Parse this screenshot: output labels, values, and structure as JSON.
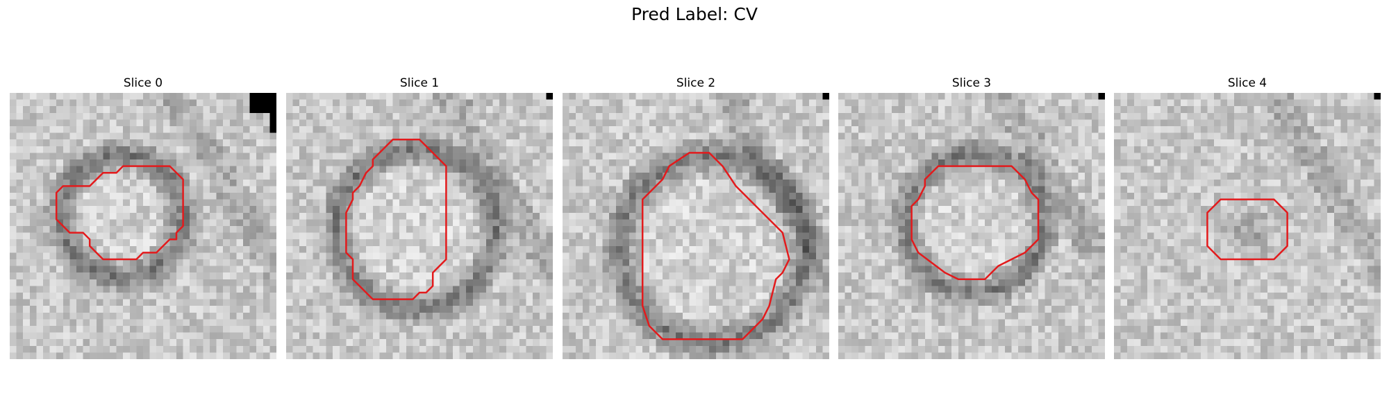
{
  "figure": {
    "title": "Pred Label: CV"
  },
  "contour_color": "#e31a1c",
  "slices": [
    {
      "title": "Slice 0",
      "contour": [
        [
          6,
          7
        ],
        [
          7,
          6
        ],
        [
          8,
          6
        ],
        [
          8.5,
          5.5
        ],
        [
          12,
          5.5
        ],
        [
          13,
          6.5
        ],
        [
          13,
          10
        ],
        [
          12.5,
          10.5
        ],
        [
          12.5,
          11
        ],
        [
          12,
          11
        ],
        [
          11,
          12
        ],
        [
          10,
          12
        ],
        [
          9.5,
          12.5
        ],
        [
          7,
          12.5
        ],
        [
          6,
          11.5
        ],
        [
          6,
          11
        ],
        [
          5.5,
          10.5
        ],
        [
          4.5,
          10.5
        ],
        [
          3.5,
          9.5
        ],
        [
          3.5,
          7.5
        ],
        [
          4,
          7
        ]
      ],
      "blob": {
        "cx": 8.2,
        "cy": 9,
        "r": 4.6,
        "ring": 1.5
      }
    },
    {
      "title": "Slice 1",
      "contour": [
        [
          6.5,
          5
        ],
        [
          8,
          3.5
        ],
        [
          10,
          3.5
        ],
        [
          11,
          4.5
        ],
        [
          11.5,
          5
        ],
        [
          12,
          5.5
        ],
        [
          12,
          12.5
        ],
        [
          11.5,
          13
        ],
        [
          11,
          13.5
        ],
        [
          11,
          14.5
        ],
        [
          10.5,
          15
        ],
        [
          10,
          15
        ],
        [
          9.5,
          15.5
        ],
        [
          6.5,
          15.5
        ],
        [
          5.5,
          14.5
        ],
        [
          5,
          14
        ],
        [
          5,
          12.5
        ],
        [
          4.5,
          12
        ],
        [
          4.5,
          10
        ],
        [
          4.5,
          9
        ],
        [
          5,
          8
        ],
        [
          5,
          7.5
        ],
        [
          5.5,
          7
        ],
        [
          6,
          6
        ],
        [
          6.5,
          5.5
        ]
      ],
      "blob": {
        "cx": 9.5,
        "cy": 10,
        "r": 6,
        "ring": 1.5
      }
    },
    {
      "title": "Slice 2",
      "contour": [
        [
          8,
          5.5
        ],
        [
          9.5,
          4.5
        ],
        [
          11,
          4.5
        ],
        [
          12,
          5.5
        ],
        [
          13,
          7
        ],
        [
          14.5,
          8.5
        ],
        [
          16.5,
          10.5
        ],
        [
          17,
          12.5
        ],
        [
          16.5,
          13.5
        ],
        [
          16,
          14
        ],
        [
          15.5,
          16
        ],
        [
          15,
          17
        ],
        [
          14.5,
          17.5
        ],
        [
          14,
          18
        ],
        [
          13.5,
          18.5
        ],
        [
          7.5,
          18.5
        ],
        [
          6.5,
          17.5
        ],
        [
          6,
          16
        ],
        [
          6,
          13
        ],
        [
          6,
          10
        ],
        [
          6,
          8
        ],
        [
          7,
          7
        ],
        [
          7.5,
          6.5
        ]
      ],
      "blob": {
        "cx": 11,
        "cy": 11.5,
        "r": 7,
        "ring": 1.6
      }
    },
    {
      "title": "Slice 3",
      "contour": [
        [
          6.5,
          6.5
        ],
        [
          7.5,
          5.5
        ],
        [
          13,
          5.5
        ],
        [
          14,
          6.5
        ],
        [
          14.5,
          7.5
        ],
        [
          15,
          8
        ],
        [
          15,
          11
        ],
        [
          14,
          12
        ],
        [
          13,
          12.5
        ],
        [
          12,
          13
        ],
        [
          11,
          14
        ],
        [
          9,
          14
        ],
        [
          8,
          13.5
        ],
        [
          6,
          12
        ],
        [
          5.5,
          11
        ],
        [
          5.5,
          8.5
        ],
        [
          6,
          8
        ],
        [
          6.5,
          7
        ]
      ],
      "blob": {
        "cx": 10,
        "cy": 9.5,
        "r": 5.2,
        "ring": 1.4
      }
    },
    {
      "title": "Slice 4",
      "contour": [
        [
          7.5,
          8.5
        ],
        [
          8,
          8
        ],
        [
          12,
          8
        ],
        [
          12.5,
          8.5
        ],
        [
          13,
          9
        ],
        [
          13,
          11.5
        ],
        [
          12.5,
          12
        ],
        [
          12,
          12.5
        ],
        [
          8,
          12.5
        ],
        [
          7.5,
          12
        ],
        [
          7,
          11.5
        ],
        [
          7,
          9
        ],
        [
          7.5,
          8.5
        ]
      ],
      "blob": {
        "cx": 10,
        "cy": 10.2,
        "r": 2.4,
        "ring": 0
      }
    }
  ]
}
